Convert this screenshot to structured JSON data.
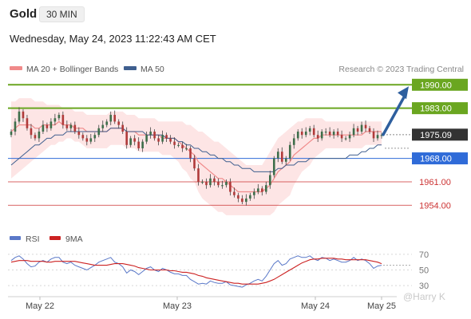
{
  "header": {
    "symbol": "Gold",
    "timeframe": "30 MIN",
    "datetime": "Wednesday, May 24, 2023 11:22:43 AM CET"
  },
  "legend": {
    "ma20": "MA 20 + Bollinger Bands",
    "ma50": "MA 50",
    "credit": "Research © 2023 Trading Central",
    "rsi": "RSI",
    "rsi_ma": "9MA",
    "watermark": "@Harry K"
  },
  "colors": {
    "resistance": "#6aa620",
    "pivot": "#2f6bd8",
    "support": "#cc3333",
    "current": "#333333",
    "ma20": "#f08a8a",
    "ma50": "#3f5f8f",
    "band": "#fde1e1",
    "arrow": "#2e5f9e",
    "up": "#3d6e4a",
    "down": "#b03a3a"
  },
  "chart_data": [
    {
      "type": "candlestick",
      "y_min": 1950.5,
      "y_max": 1991.5,
      "x_ticks": [
        "May 22",
        "May 23",
        "May 24",
        "May 25"
      ],
      "levels": [
        {
          "value": 1990.0,
          "label": "1990.00",
          "kind": "resistance"
        },
        {
          "value": 1983.0,
          "label": "1983.00",
          "kind": "resistance"
        },
        {
          "value": 1975.09,
          "label": "1975.09",
          "kind": "current"
        },
        {
          "value": 1968.0,
          "label": "1968.00",
          "kind": "pivot"
        },
        {
          "value": 1961.0,
          "label": "1961.00",
          "kind": "support"
        },
        {
          "value": 1954.0,
          "label": "1954.00",
          "kind": "support"
        }
      ],
      "close": [
        1976,
        1979,
        1982,
        1980,
        1977,
        1975,
        1974,
        1976,
        1978,
        1977,
        1979,
        1980,
        1981,
        1978,
        1977,
        1978,
        1976,
        1975,
        1974,
        1973,
        1974,
        1975,
        1977,
        1978,
        1979,
        1981,
        1979,
        1978,
        1976,
        1972,
        1974,
        1973,
        1971,
        1973,
        1975,
        1976,
        1974,
        1973,
        1975,
        1974,
        1973,
        1972,
        1972,
        1971,
        1971,
        1968,
        1965,
        1961,
        1961,
        1960,
        1962,
        1961,
        1960,
        1960,
        1961,
        1958,
        1957,
        1956,
        1955,
        1956,
        1957,
        1958,
        1959,
        1958,
        1960,
        1963,
        1968,
        1970,
        1967,
        1968,
        1972,
        1974,
        1976,
        1975,
        1976,
        1977,
        1975,
        1974,
        1976,
        1976,
        1975,
        1976,
        1975,
        1974,
        1974,
        1975,
        1977,
        1976,
        1978,
        1977,
        1976,
        1974,
        1975,
        1975
      ],
      "ma20": [
        1976,
        1977,
        1978,
        1978,
        1978,
        1978,
        1977,
        1977,
        1978,
        1978,
        1978,
        1978,
        1979,
        1978,
        1978,
        1978,
        1977,
        1977,
        1977,
        1976,
        1976,
        1976,
        1976,
        1976,
        1976,
        1977,
        1977,
        1977,
        1977,
        1976,
        1976,
        1976,
        1975,
        1975,
        1975,
        1975,
        1975,
        1975,
        1974,
        1974,
        1974,
        1974,
        1973,
        1972,
        1971,
        1970,
        1969,
        1967,
        1966,
        1965,
        1964,
        1963,
        1962,
        1962,
        1961,
        1960,
        1959,
        1958,
        1958,
        1958,
        1958,
        1958,
        1958,
        1958,
        1959,
        1960,
        1962,
        1964,
        1965,
        1966,
        1967,
        1969,
        1970,
        1971,
        1972,
        1973,
        1974,
        1974,
        1975,
        1975,
        1975,
        1975,
        1975,
        1975,
        1975,
        1975,
        1975,
        1975,
        1975,
        1976,
        1976,
        1976,
        1976,
        1976
      ],
      "ma50": [
        1966,
        1967,
        1968,
        1969,
        1970,
        1971,
        1972,
        1972,
        1973,
        1974,
        1974,
        1975,
        1975,
        1975,
        1976,
        1976,
        1976,
        1976,
        1976,
        1976,
        1976,
        1976,
        1976,
        1976,
        1976,
        1977,
        1977,
        1977,
        1977,
        1976,
        1976,
        1976,
        1976,
        1976,
        1975,
        1975,
        1975,
        1975,
        1975,
        1974,
        1974,
        1974,
        1973,
        1973,
        1972,
        1972,
        1971,
        1971,
        1970,
        1970,
        1969,
        1969,
        1968,
        1968,
        1967,
        1967,
        1966,
        1966,
        1965,
        1965,
        1965,
        1964,
        1964,
        1964,
        1964,
        1964,
        1964,
        1965,
        1965,
        1966,
        1966,
        1966,
        1967,
        1967,
        1967,
        1968,
        1968,
        1968,
        1968,
        1968,
        1968,
        1968,
        1968,
        1968,
        1968,
        1969,
        1969,
        1969,
        1970,
        1970,
        1971,
        1971,
        1972,
        1972
      ],
      "bb_upper": [
        1985,
        1985,
        1986,
        1986,
        1986,
        1986,
        1985,
        1985,
        1985,
        1984,
        1984,
        1984,
        1984,
        1983,
        1983,
        1983,
        1982,
        1982,
        1982,
        1981,
        1981,
        1981,
        1981,
        1981,
        1981,
        1982,
        1982,
        1982,
        1982,
        1981,
        1981,
        1981,
        1980,
        1980,
        1980,
        1980,
        1980,
        1979,
        1979,
        1979,
        1979,
        1979,
        1979,
        1979,
        1978,
        1978,
        1977,
        1976,
        1976,
        1975,
        1974,
        1973,
        1973,
        1972,
        1971,
        1970,
        1969,
        1968,
        1967,
        1966,
        1966,
        1966,
        1966,
        1966,
        1968,
        1970,
        1972,
        1974,
        1975,
        1976,
        1977,
        1978,
        1979,
        1979,
        1980,
        1980,
        1980,
        1980,
        1980,
        1979,
        1979,
        1979,
        1979,
        1979,
        1979,
        1979,
        1979,
        1979,
        1979,
        1979,
        1979,
        1979,
        1979,
        1979
      ],
      "bb_lower": [
        1962,
        1963,
        1964,
        1965,
        1966,
        1967,
        1968,
        1969,
        1970,
        1971,
        1972,
        1972,
        1973,
        1973,
        1974,
        1974,
        1973,
        1973,
        1972,
        1971,
        1971,
        1971,
        1971,
        1971,
        1971,
        1972,
        1972,
        1972,
        1972,
        1971,
        1971,
        1971,
        1970,
        1970,
        1970,
        1970,
        1970,
        1970,
        1969,
        1969,
        1969,
        1968,
        1967,
        1965,
        1964,
        1962,
        1961,
        1958,
        1956,
        1955,
        1954,
        1953,
        1952,
        1952,
        1951,
        1951,
        1951,
        1951,
        1951,
        1951,
        1951,
        1951,
        1951,
        1951,
        1951,
        1951,
        1952,
        1954,
        1955,
        1956,
        1957,
        1960,
        1962,
        1964,
        1965,
        1966,
        1968,
        1969,
        1970,
        1971,
        1971,
        1971,
        1971,
        1971,
        1971,
        1971,
        1971,
        1971,
        1971,
        1972,
        1972,
        1972,
        1972,
        1972
      ],
      "forecast": {
        "from": 1975.09,
        "to": 1990.0
      }
    },
    {
      "type": "line",
      "name": "RSI",
      "y_ticks": [
        70,
        50,
        30
      ],
      "y_min": 22,
      "y_max": 78,
      "rsi": [
        62,
        66,
        68,
        64,
        58,
        54,
        55,
        60,
        62,
        60,
        64,
        66,
        66,
        60,
        58,
        60,
        56,
        54,
        52,
        50,
        53,
        56,
        60,
        62,
        64,
        66,
        60,
        58,
        54,
        46,
        50,
        48,
        44,
        48,
        52,
        54,
        50,
        48,
        52,
        50,
        47,
        45,
        45,
        43,
        43,
        38,
        35,
        32,
        33,
        32,
        36,
        34,
        33,
        33,
        35,
        31,
        30,
        29,
        28,
        31,
        33,
        36,
        38,
        36,
        42,
        50,
        58,
        62,
        56,
        58,
        64,
        66,
        68,
        66,
        66,
        68,
        64,
        62,
        66,
        65,
        62,
        64,
        62,
        60,
        60,
        62,
        66,
        62,
        64,
        62,
        58,
        52,
        55,
        56
      ],
      "rsi_ma": [
        60,
        61,
        62,
        62,
        62,
        61,
        61,
        61,
        61,
        60,
        60,
        61,
        61,
        61,
        61,
        61,
        61,
        60,
        59,
        58,
        57,
        56,
        56,
        56,
        56,
        57,
        58,
        58,
        58,
        57,
        56,
        55,
        53,
        52,
        51,
        50,
        50,
        50,
        50,
        50,
        49,
        49,
        48,
        47,
        47,
        46,
        45,
        43,
        42,
        40,
        39,
        38,
        37,
        36,
        35,
        34,
        33,
        33,
        32,
        32,
        32,
        32,
        32,
        33,
        34,
        36,
        38,
        41,
        44,
        47,
        50,
        53,
        56,
        59,
        61,
        63,
        64,
        64,
        65,
        65,
        65,
        65,
        64,
        64,
        63,
        63,
        63,
        63,
        63,
        63,
        62,
        61,
        60,
        58
      ]
    }
  ]
}
